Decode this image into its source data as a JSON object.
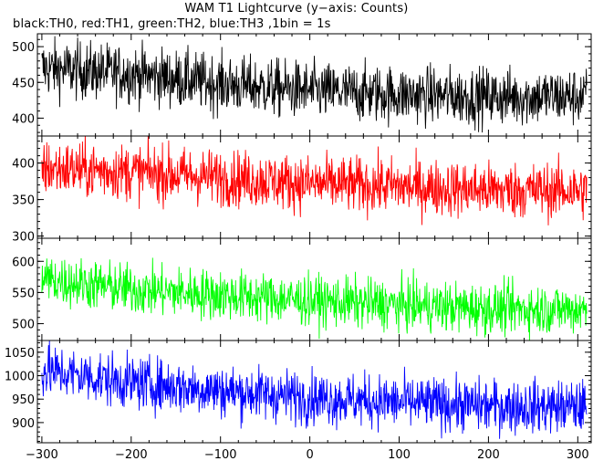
{
  "title": "WAM T1 Lightcurve (y−axis: Counts)",
  "subtitle": "black:TH0, red:TH1, green:TH2, blue:TH3 ,1bin = 1s",
  "chart_data": {
    "type": "line",
    "title": "WAM T1 Lightcurve (y−axis: Counts)",
    "subtitle": "black:TH0, red:TH1, green:TH2, blue:TH3 ,1bin = 1s",
    "ylabel": "Counts",
    "xlim": [
      -305,
      315
    ],
    "xticks": [
      -300,
      -200,
      -100,
      0,
      100,
      200,
      300
    ],
    "xtick_labels": [
      "−300",
      "−200",
      "−100",
      "0",
      "100",
      "200",
      "300"
    ],
    "bin_seconds": 1,
    "panels": [
      {
        "name": "TH0",
        "color": "#000000",
        "ylim": [
          375,
          518
        ],
        "yticks": [
          400,
          450,
          500
        ],
        "trend": [
          [
            -300,
            470
          ],
          [
            -200,
            462
          ],
          [
            -100,
            448
          ],
          [
            0,
            438
          ],
          [
            100,
            433
          ],
          [
            200,
            430
          ],
          [
            310,
            430
          ]
        ],
        "noise_sd": 20
      },
      {
        "name": "TH1",
        "color": "#ff0000",
        "ylim": [
          297,
          437
        ],
        "yticks": [
          300,
          350,
          400
        ],
        "trend": [
          [
            -300,
            393
          ],
          [
            -200,
            388
          ],
          [
            -100,
            380
          ],
          [
            0,
            372
          ],
          [
            100,
            368
          ],
          [
            200,
            363
          ],
          [
            310,
            362
          ]
        ],
        "noise_sd": 19
      },
      {
        "name": "TH2",
        "color": "#00ff00",
        "ylim": [
          473,
          637
        ],
        "yticks": [
          500,
          550,
          600
        ],
        "trend": [
          [
            -300,
            572
          ],
          [
            -200,
            555
          ],
          [
            -100,
            546
          ],
          [
            0,
            537
          ],
          [
            100,
            530
          ],
          [
            200,
            524
          ],
          [
            310,
            523
          ]
        ],
        "noise_sd": 20
      },
      {
        "name": "TH3",
        "color": "#0000ff",
        "ylim": [
          857,
          1075
        ],
        "yticks": [
          900,
          950,
          1000,
          1050
        ],
        "trend": [
          [
            -300,
            1012
          ],
          [
            -200,
            985
          ],
          [
            -100,
            968
          ],
          [
            0,
            953
          ],
          [
            100,
            943
          ],
          [
            200,
            935
          ],
          [
            310,
            933
          ]
        ],
        "noise_sd": 28
      }
    ],
    "grid": false
  }
}
